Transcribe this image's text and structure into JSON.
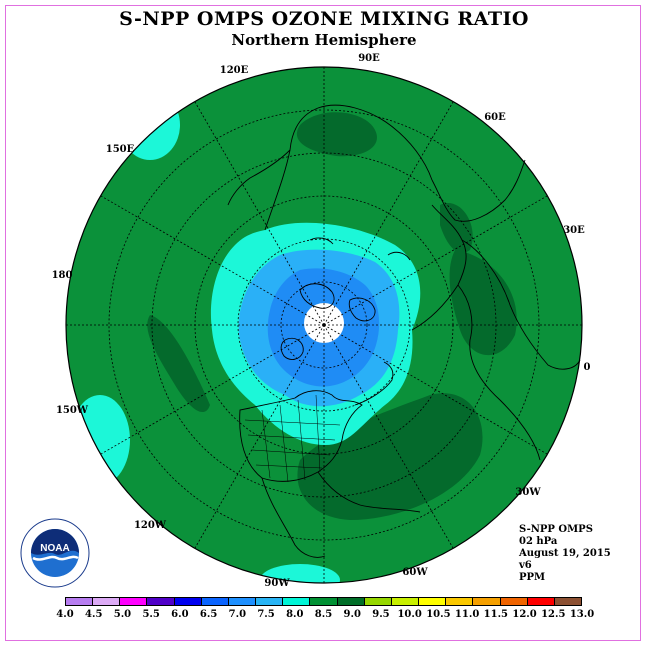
{
  "title": "S-NPP OMPS OZONE MIXING RATIO",
  "subtitle": "Northern Hemisphere",
  "longitude_labels": {
    "e120": "120E",
    "e90": "90E",
    "e60": "60E",
    "e150": "150E",
    "e30": "30E",
    "d180": "180",
    "d0": "0",
    "w150": "150W",
    "w30": "30W",
    "w120": "120W",
    "w60": "60W",
    "w90": "90W"
  },
  "info": {
    "instrument": "S-NPP OMPS",
    "level": "02 hPa",
    "date": "August 19, 2015",
    "version": "v6",
    "units": "PPM"
  },
  "logo_text": "NOAA",
  "colorbar": {
    "ticks": [
      "4.0",
      "4.5",
      "5.0",
      "5.5",
      "6.0",
      "6.5",
      "7.0",
      "7.5",
      "8.0",
      "8.5",
      "9.0",
      "9.5",
      "10.0",
      "10.5",
      "11.0",
      "11.5",
      "12.0",
      "12.5",
      "13.0"
    ],
    "colors": [
      "#b77df0",
      "#dcaaf5",
      "#ff00ff",
      "#5000c8",
      "#0000f0",
      "#0a64ff",
      "#1e90ff",
      "#28b4f5",
      "#00f5d7",
      "#009133",
      "#006e28",
      "#96d700",
      "#c8f000",
      "#ffff00",
      "#fac800",
      "#f5a000",
      "#f06400",
      "#ff0000",
      "#8c5032"
    ]
  },
  "map_colors": {
    "background": "#0b913a",
    "dark": "#046a2c",
    "cyan": "#1cf7d8",
    "sky": "#2ab0f7",
    "blue": "#1f8cf5"
  }
}
